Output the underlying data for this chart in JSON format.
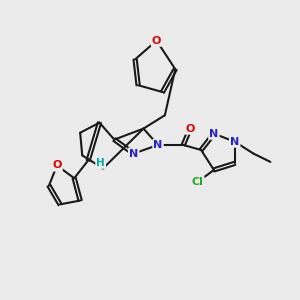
{
  "bg_color": "#ebebeb",
  "bond_color": "#1a1a1a",
  "bond_lw": 1.5,
  "dbl_sep": 0.055,
  "atom_colors": {
    "O": "#dd0000",
    "N": "#2222cc",
    "Cl": "#22aa22",
    "H": "#00aaaa",
    "C": "#1a1a1a"
  },
  "fs": 8.0
}
